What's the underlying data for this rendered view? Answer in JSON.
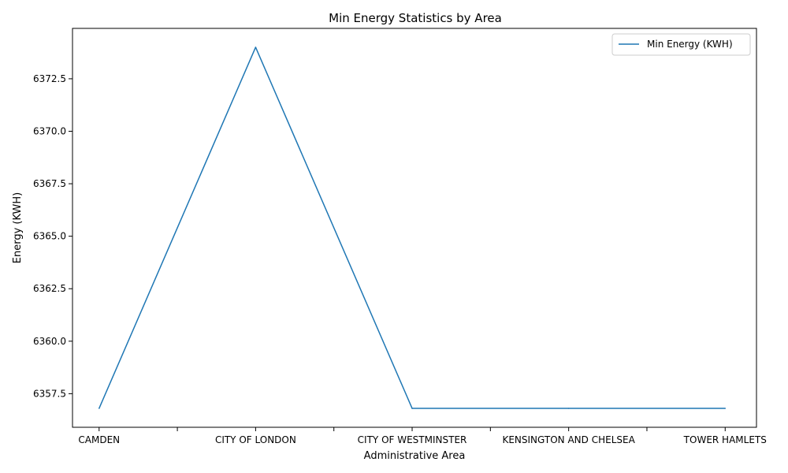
{
  "chart_data": {
    "type": "line",
    "title": "Min Energy Statistics by Area",
    "xlabel": "Administrative Area",
    "ylabel": "Energy (KWH)",
    "categories": [
      "CAMDEN",
      "CITY OF LONDON",
      "CITY OF WESTMINSTER",
      "KENSINGTON AND CHELSEA",
      "TOWER HAMLETS"
    ],
    "x_positions": [
      0,
      2,
      4,
      6,
      8
    ],
    "x_ticks": [
      0,
      1,
      2,
      3,
      4,
      5,
      6,
      7,
      8
    ],
    "x_tick_labels": [
      "CAMDEN",
      "",
      "CITY OF LONDON",
      "",
      "CITY OF WESTMINSTER",
      "",
      "KENSINGTON AND CHELSEA",
      "",
      "TOWER HAMLETS"
    ],
    "series": [
      {
        "name": "Min Energy (KWH)",
        "color": "#1f77b4",
        "values": [
          6356.8,
          6374.0,
          6356.8,
          6356.8,
          6356.8
        ]
      }
    ],
    "xlim": [
      -0.34,
      8.4
    ],
    "ylim": [
      6355.9,
      6374.9
    ],
    "y_ticks": [
      6357.5,
      6360.0,
      6362.5,
      6365.0,
      6367.5,
      6370.0,
      6372.5
    ],
    "y_tick_labels": [
      "6357.5",
      "6360.0",
      "6362.5",
      "6365.0",
      "6367.5",
      "6370.0",
      "6372.5"
    ],
    "grid": false,
    "legend": "top-right"
  }
}
